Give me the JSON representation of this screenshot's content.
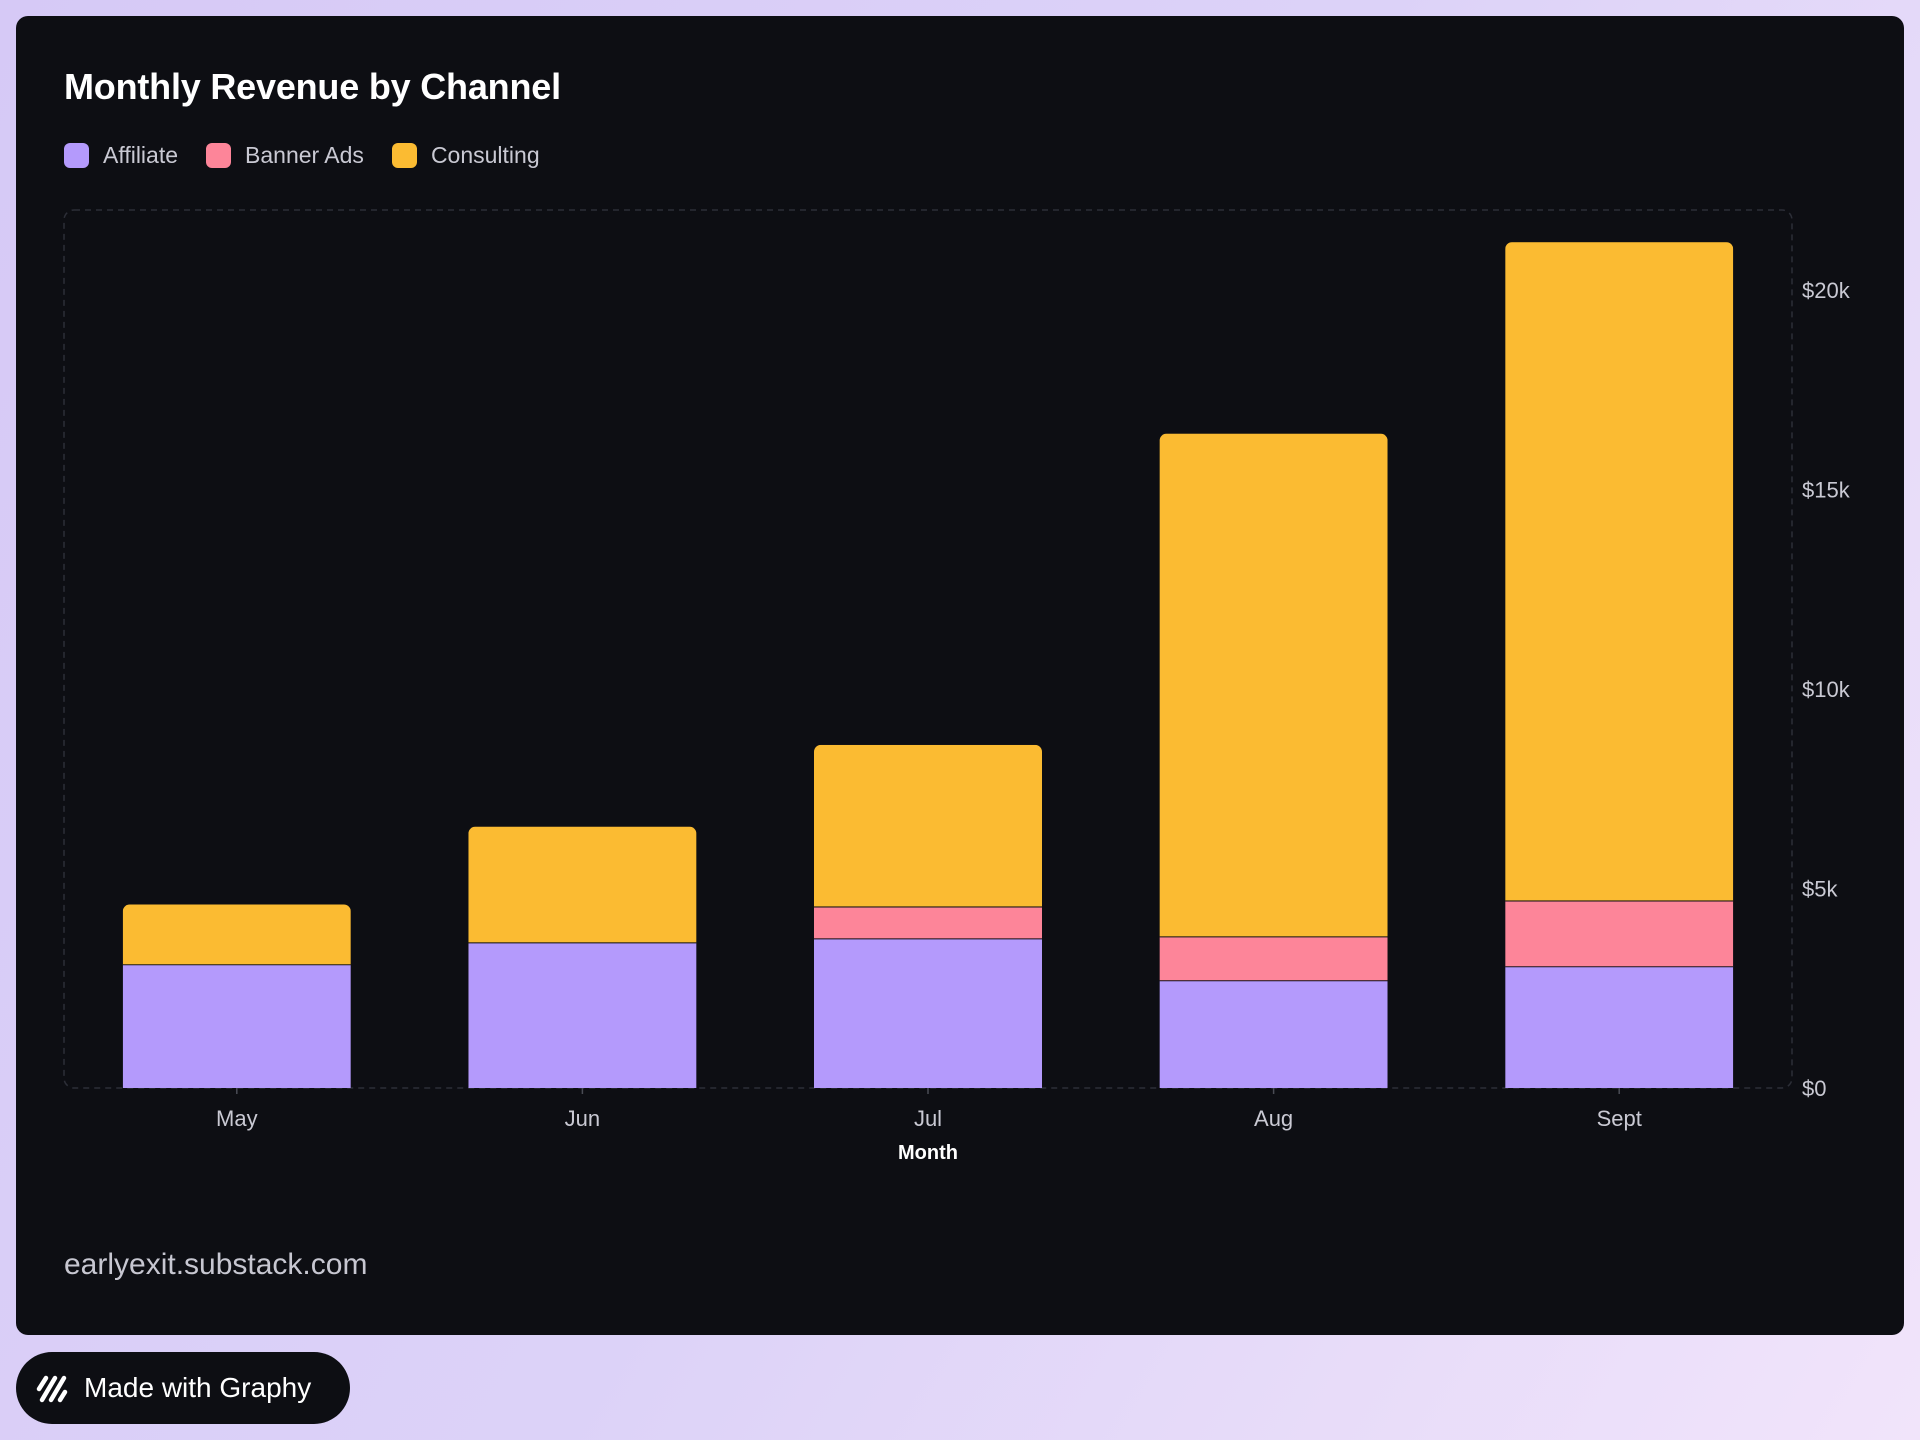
{
  "brand": {
    "made_with_label": "Made with Graphy",
    "logo_icon": "graphy-logo-icon"
  },
  "source_label": "earlyexit.substack.com",
  "colors": {
    "card_background": "#0d0e13",
    "affiliate": "#b49afc",
    "banner_ads": "#fd8599",
    "consulting": "#fbbb32",
    "tick_text": "#c9c9d3"
  },
  "chart_data": {
    "type": "bar",
    "stacked": true,
    "title": "Monthly Revenue by Channel",
    "xlabel": "Month",
    "ylabel": "",
    "categories": [
      "May",
      "Jun",
      "Jul",
      "Aug",
      "Sept"
    ],
    "series": [
      {
        "name": "Affiliate",
        "color": "#b49afc",
        "values": [
          3100,
          3650,
          3750,
          2700,
          3050
        ]
      },
      {
        "name": "Banner Ads",
        "color": "#fd8599",
        "values": [
          0,
          0,
          800,
          1100,
          1650
        ]
      },
      {
        "name": "Consulting",
        "color": "#fbbb32",
        "values": [
          1500,
          2900,
          4050,
          12600,
          16500
        ]
      }
    ],
    "ylim": [
      0,
      22000
    ],
    "yticks": [
      0,
      5000,
      10000,
      15000,
      20000
    ],
    "ytick_labels": [
      "$0",
      "$5k",
      "$10k",
      "$15k",
      "$20k"
    ],
    "y_axis_position": "right",
    "legend_position": "top-left",
    "grid": false
  }
}
